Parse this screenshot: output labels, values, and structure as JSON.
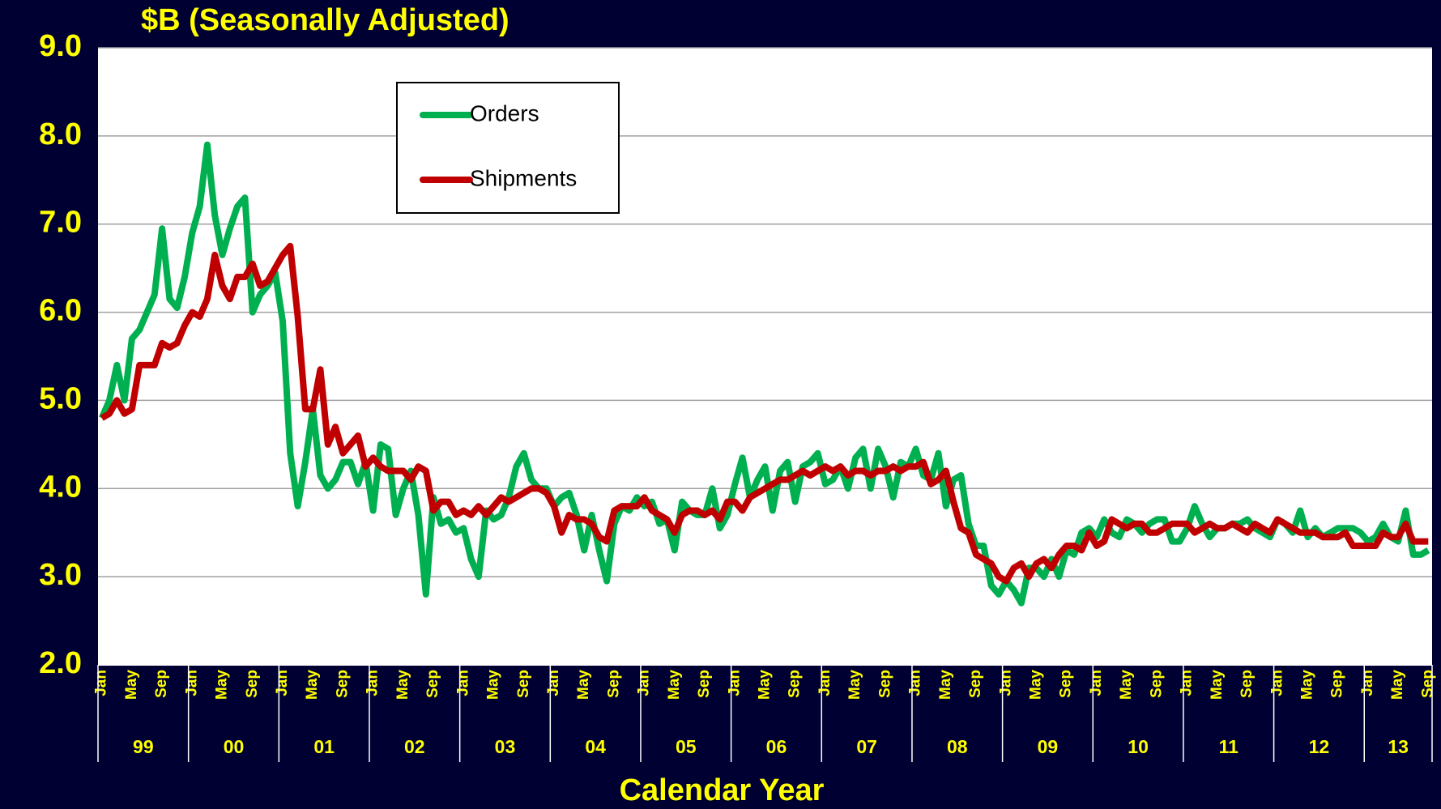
{
  "chart_data": {
    "type": "line",
    "title": "$B (Seasonally Adjusted)",
    "x_label": "Calendar Year",
    "categories": [
      "Jan",
      null,
      null,
      null,
      "May",
      null,
      null,
      null,
      "Sep",
      null,
      null,
      null,
      "Jan",
      null,
      null,
      null,
      "May",
      null,
      null,
      null,
      "Sep",
      null,
      null,
      null,
      "Jan",
      null,
      null,
      null,
      "May",
      null,
      null,
      null,
      "Sep",
      null,
      null,
      null,
      "Jan",
      null,
      null,
      null,
      "May",
      null,
      null,
      null,
      "Sep",
      null,
      null,
      null,
      "Jan",
      null,
      null,
      null,
      "May",
      null,
      null,
      null,
      "Sep",
      null,
      null,
      null,
      "Jan",
      null,
      null,
      null,
      "May",
      null,
      null,
      null,
      "Sep",
      null,
      null,
      null,
      "Jan",
      null,
      null,
      null,
      "May",
      null,
      null,
      null,
      "Sep",
      null,
      null,
      null,
      "Jan",
      null,
      null,
      null,
      "May",
      null,
      null,
      null,
      "Sep",
      null,
      null,
      null,
      "Jan",
      null,
      null,
      null,
      "May",
      null,
      null,
      null,
      "Sep",
      null,
      null,
      null,
      "Jan",
      null,
      null,
      null,
      "May",
      null,
      null,
      null,
      "Sep",
      null,
      null,
      null,
      "Jan",
      null,
      null,
      null,
      "May",
      null,
      null,
      null,
      "Sep",
      null,
      null,
      null,
      "Jan",
      null,
      null,
      null,
      "May",
      null,
      null,
      null,
      "Sep",
      null,
      null,
      null,
      "Jan",
      null,
      null,
      null,
      "May",
      null,
      null,
      null,
      "Sep",
      null,
      null,
      null,
      "Jan",
      null,
      null,
      null,
      "May",
      null,
      null,
      null,
      "Sep",
      null,
      null,
      null,
      "Jan",
      null,
      null,
      null,
      "May",
      null,
      null,
      null,
      "Sep"
    ],
    "x_groups": [
      "99",
      "00",
      "01",
      "02",
      "03",
      "04",
      "05",
      "06",
      "07",
      "08",
      "09",
      "10",
      "11",
      "12",
      "13"
    ],
    "series": [
      {
        "name": "Orders",
        "color": "#00b050",
        "values": [
          4.8,
          5.0,
          5.4,
          5.0,
          5.7,
          5.8,
          6.0,
          6.2,
          6.95,
          6.15,
          6.05,
          6.4,
          6.9,
          7.2,
          7.9,
          7.1,
          6.65,
          6.95,
          7.2,
          7.3,
          6.0,
          6.2,
          6.3,
          6.45,
          5.9,
          4.4,
          3.8,
          4.3,
          4.9,
          4.15,
          4.0,
          4.1,
          4.3,
          4.3,
          4.05,
          4.3,
          3.75,
          4.5,
          4.45,
          3.7,
          4.0,
          4.2,
          3.7,
          2.8,
          3.9,
          3.6,
          3.65,
          3.5,
          3.55,
          3.2,
          3.0,
          3.75,
          3.65,
          3.7,
          3.9,
          4.25,
          4.4,
          4.1,
          4.0,
          4.0,
          3.8,
          3.9,
          3.95,
          3.7,
          3.3,
          3.7,
          3.3,
          2.95,
          3.6,
          3.8,
          3.75,
          3.9,
          3.8,
          3.85,
          3.6,
          3.65,
          3.3,
          3.85,
          3.75,
          3.7,
          3.7,
          4.0,
          3.55,
          3.7,
          4.05,
          4.35,
          3.9,
          4.1,
          4.25,
          3.75,
          4.2,
          4.3,
          3.85,
          4.25,
          4.3,
          4.4,
          4.05,
          4.1,
          4.25,
          4.0,
          4.35,
          4.45,
          4.0,
          4.45,
          4.25,
          3.9,
          4.3,
          4.25,
          4.45,
          4.15,
          4.1,
          4.4,
          3.8,
          4.1,
          4.15,
          3.6,
          3.35,
          3.35,
          2.9,
          2.8,
          2.95,
          2.85,
          2.7,
          3.1,
          3.1,
          3.0,
          3.2,
          3.0,
          3.3,
          3.25,
          3.5,
          3.55,
          3.45,
          3.65,
          3.5,
          3.45,
          3.65,
          3.6,
          3.5,
          3.6,
          3.65,
          3.65,
          3.4,
          3.4,
          3.55,
          3.8,
          3.6,
          3.45,
          3.55,
          3.55,
          3.6,
          3.6,
          3.65,
          3.55,
          3.5,
          3.45,
          3.65,
          3.6,
          3.5,
          3.75,
          3.45,
          3.55,
          3.45,
          3.5,
          3.55,
          3.55,
          3.55,
          3.5,
          3.4,
          3.45,
          3.6,
          3.45,
          3.4,
          3.75,
          3.25,
          3.25,
          3.3
        ]
      },
      {
        "name": "Shipments",
        "color": "#c00000",
        "values": [
          4.8,
          4.85,
          5.0,
          4.85,
          4.9,
          5.4,
          5.4,
          5.4,
          5.65,
          5.6,
          5.65,
          5.85,
          6.0,
          5.95,
          6.15,
          6.65,
          6.3,
          6.15,
          6.4,
          6.4,
          6.55,
          6.3,
          6.35,
          6.5,
          6.65,
          6.75,
          5.95,
          4.9,
          4.9,
          5.35,
          4.5,
          4.7,
          4.4,
          4.5,
          4.6,
          4.25,
          4.35,
          4.25,
          4.2,
          4.2,
          4.2,
          4.1,
          4.25,
          4.2,
          3.75,
          3.85,
          3.85,
          3.7,
          3.75,
          3.7,
          3.8,
          3.7,
          3.8,
          3.9,
          3.85,
          3.9,
          3.95,
          4.0,
          4.0,
          3.95,
          3.8,
          3.5,
          3.7,
          3.65,
          3.65,
          3.6,
          3.45,
          3.4,
          3.75,
          3.8,
          3.8,
          3.8,
          3.9,
          3.75,
          3.7,
          3.65,
          3.5,
          3.7,
          3.75,
          3.75,
          3.7,
          3.75,
          3.65,
          3.85,
          3.85,
          3.75,
          3.9,
          3.95,
          4.0,
          4.05,
          4.1,
          4.1,
          4.15,
          4.2,
          4.15,
          4.2,
          4.25,
          4.2,
          4.25,
          4.15,
          4.2,
          4.2,
          4.15,
          4.2,
          4.2,
          4.25,
          4.2,
          4.25,
          4.25,
          4.3,
          4.05,
          4.1,
          4.2,
          3.85,
          3.55,
          3.5,
          3.25,
          3.2,
          3.15,
          3.0,
          2.95,
          3.1,
          3.15,
          3.0,
          3.15,
          3.2,
          3.1,
          3.25,
          3.35,
          3.35,
          3.3,
          3.5,
          3.35,
          3.4,
          3.65,
          3.6,
          3.55,
          3.6,
          3.6,
          3.5,
          3.5,
          3.55,
          3.6,
          3.6,
          3.6,
          3.5,
          3.55,
          3.6,
          3.55,
          3.55,
          3.6,
          3.55,
          3.5,
          3.6,
          3.55,
          3.5,
          3.65,
          3.6,
          3.55,
          3.5,
          3.5,
          3.5,
          3.45,
          3.45,
          3.45,
          3.5,
          3.35,
          3.35,
          3.35,
          3.35,
          3.5,
          3.45,
          3.45,
          3.6,
          3.4,
          3.4,
          3.4
        ]
      }
    ],
    "ylim": [
      2,
      9
    ],
    "yticks": [
      {
        "value": 2,
        "label": "2.0"
      },
      {
        "value": 3,
        "label": "3.0"
      },
      {
        "value": 4,
        "label": "4.0"
      },
      {
        "value": 5,
        "label": "5.0"
      },
      {
        "value": 6,
        "label": "6.0"
      },
      {
        "value": 7,
        "label": "7.0"
      },
      {
        "value": 8,
        "label": "8.0"
      },
      {
        "value": 9,
        "label": "9.0"
      }
    ],
    "grid": true,
    "legend": "upper-left"
  }
}
